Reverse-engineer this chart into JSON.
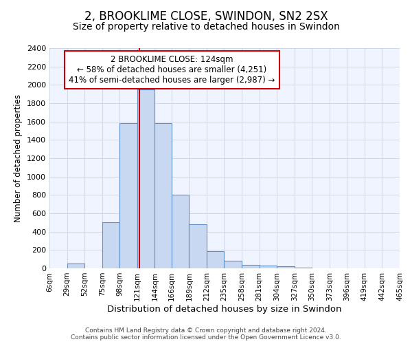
{
  "title": "2, BROOKLIME CLOSE, SWINDON, SN2 2SX",
  "subtitle": "Size of property relative to detached houses in Swindon",
  "xlabel": "Distribution of detached houses by size in Swindon",
  "ylabel": "Number of detached properties",
  "footnote1": "Contains HM Land Registry data © Crown copyright and database right 2024.",
  "footnote2": "Contains public sector information licensed under the Open Government Licence v3.0.",
  "annotation_line1": "2 BROOKLIME CLOSE: 124sqm",
  "annotation_line2": "← 58% of detached houses are smaller (4,251)",
  "annotation_line3": "41% of semi-detached houses are larger (2,987) →",
  "bar_edges": [
    6,
    29,
    52,
    75,
    98,
    121,
    144,
    166,
    189,
    212,
    235,
    258,
    281,
    304,
    327,
    350,
    373,
    396,
    419,
    442,
    465
  ],
  "bar_heights": [
    0,
    50,
    0,
    500,
    1580,
    1950,
    1580,
    800,
    480,
    190,
    85,
    35,
    30,
    20,
    5,
    0,
    0,
    0,
    0,
    0
  ],
  "bar_color": "#c8d8f0",
  "bar_edgecolor": "#6090c8",
  "red_line_x": 124,
  "red_line_color": "#cc0000",
  "annotation_box_color": "#cc0000",
  "ylim": [
    0,
    2400
  ],
  "yticks": [
    0,
    200,
    400,
    600,
    800,
    1000,
    1200,
    1400,
    1600,
    1800,
    2000,
    2200,
    2400
  ],
  "bg_color": "#ffffff",
  "plot_bg_color": "#f0f4ff",
  "grid_color": "#d0d8e8",
  "title_fontsize": 12,
  "subtitle_fontsize": 10,
  "title_fontweight": "normal"
}
